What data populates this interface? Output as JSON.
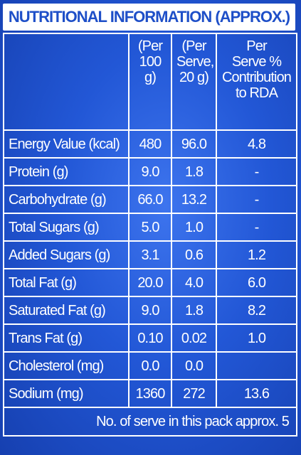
{
  "title": "NUTRITIONAL INFORMATION (APPROX.)",
  "table": {
    "header": [
      [
        ""
      ],
      [
        "(Per",
        "100 g)"
      ],
      [
        "(Per",
        "Serve,",
        "20 g)"
      ],
      [
        "Per",
        "Serve %",
        "Contribution",
        "to RDA"
      ]
    ],
    "rows": [
      [
        "Energy Value (kcal)",
        "480",
        "96.0",
        "4.8"
      ],
      [
        "Protein (g)",
        "9.0",
        "1.8",
        "-"
      ],
      [
        "Carbohydrate (g)",
        "66.0",
        "13.2",
        "-"
      ],
      [
        "Total Sugars (g)",
        "5.0",
        "1.0",
        "-"
      ],
      [
        "Added Sugars (g)",
        "3.1",
        "0.6",
        "1.2"
      ],
      [
        "Total Fat (g)",
        "20.0",
        "4.0",
        "6.0"
      ],
      [
        "Saturated Fat (g)",
        "9.0",
        "1.8",
        "8.2"
      ],
      [
        "Trans Fat (g)",
        "0.10",
        "0.02",
        "1.0"
      ],
      [
        "Cholesterol (mg)",
        "0.0",
        "0.0",
        ""
      ],
      [
        "Sodium (mg)",
        "1360",
        "272",
        "13.6"
      ]
    ],
    "footer": "No. of serve in this pack approx. 5"
  }
}
